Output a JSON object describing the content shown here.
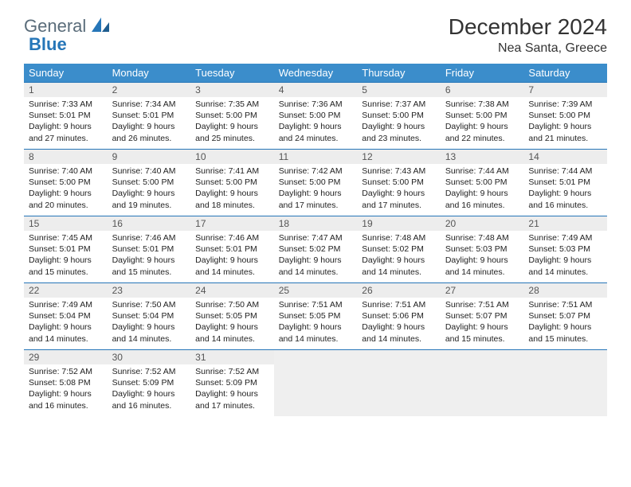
{
  "brand": {
    "name1": "General",
    "name2": "Blue"
  },
  "title": "December 2024",
  "subtitle": "Nea Santa, Greece",
  "colors": {
    "header_bg": "#3b8dcb",
    "header_text": "#ffffff",
    "rule": "#2676b8",
    "daynum_bg": "#ededed",
    "empty_bg": "#efefef",
    "brand_gray": "#5a6c7a",
    "brand_blue": "#2676b8",
    "body_text": "#222222"
  },
  "dayNames": [
    "Sunday",
    "Monday",
    "Tuesday",
    "Wednesday",
    "Thursday",
    "Friday",
    "Saturday"
  ],
  "weeks": [
    [
      {
        "n": "1",
        "sr": "Sunrise: 7:33 AM",
        "ss": "Sunset: 5:01 PM",
        "d1": "Daylight: 9 hours",
        "d2": "and 27 minutes."
      },
      {
        "n": "2",
        "sr": "Sunrise: 7:34 AM",
        "ss": "Sunset: 5:01 PM",
        "d1": "Daylight: 9 hours",
        "d2": "and 26 minutes."
      },
      {
        "n": "3",
        "sr": "Sunrise: 7:35 AM",
        "ss": "Sunset: 5:00 PM",
        "d1": "Daylight: 9 hours",
        "d2": "and 25 minutes."
      },
      {
        "n": "4",
        "sr": "Sunrise: 7:36 AM",
        "ss": "Sunset: 5:00 PM",
        "d1": "Daylight: 9 hours",
        "d2": "and 24 minutes."
      },
      {
        "n": "5",
        "sr": "Sunrise: 7:37 AM",
        "ss": "Sunset: 5:00 PM",
        "d1": "Daylight: 9 hours",
        "d2": "and 23 minutes."
      },
      {
        "n": "6",
        "sr": "Sunrise: 7:38 AM",
        "ss": "Sunset: 5:00 PM",
        "d1": "Daylight: 9 hours",
        "d2": "and 22 minutes."
      },
      {
        "n": "7",
        "sr": "Sunrise: 7:39 AM",
        "ss": "Sunset: 5:00 PM",
        "d1": "Daylight: 9 hours",
        "d2": "and 21 minutes."
      }
    ],
    [
      {
        "n": "8",
        "sr": "Sunrise: 7:40 AM",
        "ss": "Sunset: 5:00 PM",
        "d1": "Daylight: 9 hours",
        "d2": "and 20 minutes."
      },
      {
        "n": "9",
        "sr": "Sunrise: 7:40 AM",
        "ss": "Sunset: 5:00 PM",
        "d1": "Daylight: 9 hours",
        "d2": "and 19 minutes."
      },
      {
        "n": "10",
        "sr": "Sunrise: 7:41 AM",
        "ss": "Sunset: 5:00 PM",
        "d1": "Daylight: 9 hours",
        "d2": "and 18 minutes."
      },
      {
        "n": "11",
        "sr": "Sunrise: 7:42 AM",
        "ss": "Sunset: 5:00 PM",
        "d1": "Daylight: 9 hours",
        "d2": "and 17 minutes."
      },
      {
        "n": "12",
        "sr": "Sunrise: 7:43 AM",
        "ss": "Sunset: 5:00 PM",
        "d1": "Daylight: 9 hours",
        "d2": "and 17 minutes."
      },
      {
        "n": "13",
        "sr": "Sunrise: 7:44 AM",
        "ss": "Sunset: 5:00 PM",
        "d1": "Daylight: 9 hours",
        "d2": "and 16 minutes."
      },
      {
        "n": "14",
        "sr": "Sunrise: 7:44 AM",
        "ss": "Sunset: 5:01 PM",
        "d1": "Daylight: 9 hours",
        "d2": "and 16 minutes."
      }
    ],
    [
      {
        "n": "15",
        "sr": "Sunrise: 7:45 AM",
        "ss": "Sunset: 5:01 PM",
        "d1": "Daylight: 9 hours",
        "d2": "and 15 minutes."
      },
      {
        "n": "16",
        "sr": "Sunrise: 7:46 AM",
        "ss": "Sunset: 5:01 PM",
        "d1": "Daylight: 9 hours",
        "d2": "and 15 minutes."
      },
      {
        "n": "17",
        "sr": "Sunrise: 7:46 AM",
        "ss": "Sunset: 5:01 PM",
        "d1": "Daylight: 9 hours",
        "d2": "and 14 minutes."
      },
      {
        "n": "18",
        "sr": "Sunrise: 7:47 AM",
        "ss": "Sunset: 5:02 PM",
        "d1": "Daylight: 9 hours",
        "d2": "and 14 minutes."
      },
      {
        "n": "19",
        "sr": "Sunrise: 7:48 AM",
        "ss": "Sunset: 5:02 PM",
        "d1": "Daylight: 9 hours",
        "d2": "and 14 minutes."
      },
      {
        "n": "20",
        "sr": "Sunrise: 7:48 AM",
        "ss": "Sunset: 5:03 PM",
        "d1": "Daylight: 9 hours",
        "d2": "and 14 minutes."
      },
      {
        "n": "21",
        "sr": "Sunrise: 7:49 AM",
        "ss": "Sunset: 5:03 PM",
        "d1": "Daylight: 9 hours",
        "d2": "and 14 minutes."
      }
    ],
    [
      {
        "n": "22",
        "sr": "Sunrise: 7:49 AM",
        "ss": "Sunset: 5:04 PM",
        "d1": "Daylight: 9 hours",
        "d2": "and 14 minutes."
      },
      {
        "n": "23",
        "sr": "Sunrise: 7:50 AM",
        "ss": "Sunset: 5:04 PM",
        "d1": "Daylight: 9 hours",
        "d2": "and 14 minutes."
      },
      {
        "n": "24",
        "sr": "Sunrise: 7:50 AM",
        "ss": "Sunset: 5:05 PM",
        "d1": "Daylight: 9 hours",
        "d2": "and 14 minutes."
      },
      {
        "n": "25",
        "sr": "Sunrise: 7:51 AM",
        "ss": "Sunset: 5:05 PM",
        "d1": "Daylight: 9 hours",
        "d2": "and 14 minutes."
      },
      {
        "n": "26",
        "sr": "Sunrise: 7:51 AM",
        "ss": "Sunset: 5:06 PM",
        "d1": "Daylight: 9 hours",
        "d2": "and 14 minutes."
      },
      {
        "n": "27",
        "sr": "Sunrise: 7:51 AM",
        "ss": "Sunset: 5:07 PM",
        "d1": "Daylight: 9 hours",
        "d2": "and 15 minutes."
      },
      {
        "n": "28",
        "sr": "Sunrise: 7:51 AM",
        "ss": "Sunset: 5:07 PM",
        "d1": "Daylight: 9 hours",
        "d2": "and 15 minutes."
      }
    ],
    [
      {
        "n": "29",
        "sr": "Sunrise: 7:52 AM",
        "ss": "Sunset: 5:08 PM",
        "d1": "Daylight: 9 hours",
        "d2": "and 16 minutes."
      },
      {
        "n": "30",
        "sr": "Sunrise: 7:52 AM",
        "ss": "Sunset: 5:09 PM",
        "d1": "Daylight: 9 hours",
        "d2": "and 16 minutes."
      },
      {
        "n": "31",
        "sr": "Sunrise: 7:52 AM",
        "ss": "Sunset: 5:09 PM",
        "d1": "Daylight: 9 hours",
        "d2": "and 17 minutes."
      },
      null,
      null,
      null,
      null
    ]
  ]
}
